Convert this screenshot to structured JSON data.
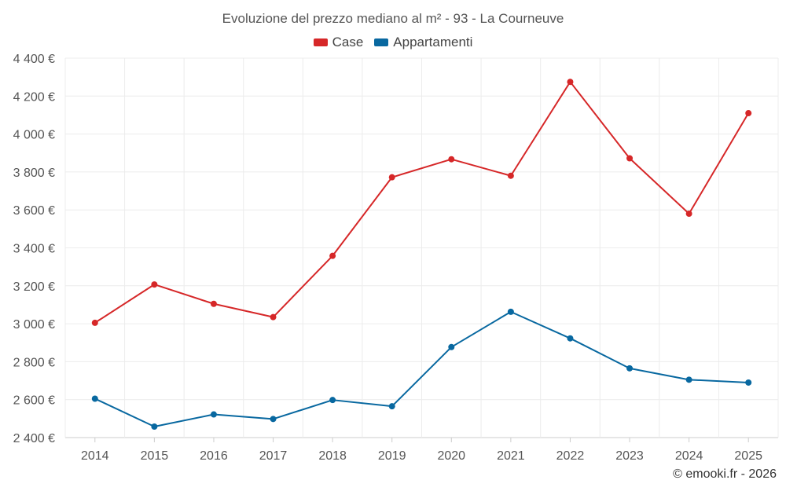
{
  "chart_data": {
    "type": "line",
    "title": "Evoluzione del prezzo mediano al m² - 93 - La Courneuve",
    "xlabel": "",
    "ylabel": "",
    "categories": [
      "2014",
      "2015",
      "2016",
      "2017",
      "2018",
      "2019",
      "2020",
      "2021",
      "2022",
      "2023",
      "2024",
      "2025"
    ],
    "ylim": [
      2400,
      4400
    ],
    "yticks": [
      2400,
      2600,
      2800,
      3000,
      3200,
      3400,
      3600,
      3800,
      4000,
      4200,
      4400
    ],
    "ytick_labels": [
      "2 400 €",
      "2 600 €",
      "2 800 €",
      "3 000 €",
      "3 200 €",
      "3 400 €",
      "3 600 €",
      "3 800 €",
      "4 000 €",
      "4 200 €",
      "4 400 €"
    ],
    "grid": true,
    "legend_position": "top-center",
    "series": [
      {
        "name": "Case",
        "color": "#d62728",
        "values": [
          3005,
          3207,
          3105,
          3035,
          3358,
          3772,
          3867,
          3780,
          4275,
          3872,
          3580,
          4110
        ]
      },
      {
        "name": "Appartamenti",
        "color": "#0868a0",
        "values": [
          2605,
          2458,
          2522,
          2498,
          2598,
          2565,
          2877,
          3063,
          2923,
          2765,
          2705,
          2690
        ]
      }
    ]
  },
  "legend": {
    "items": [
      {
        "label": "Case",
        "color": "#d62728"
      },
      {
        "label": "Appartamenti",
        "color": "#0868a0"
      }
    ]
  },
  "footer": {
    "credit": "© emooki.fr - 2026"
  }
}
